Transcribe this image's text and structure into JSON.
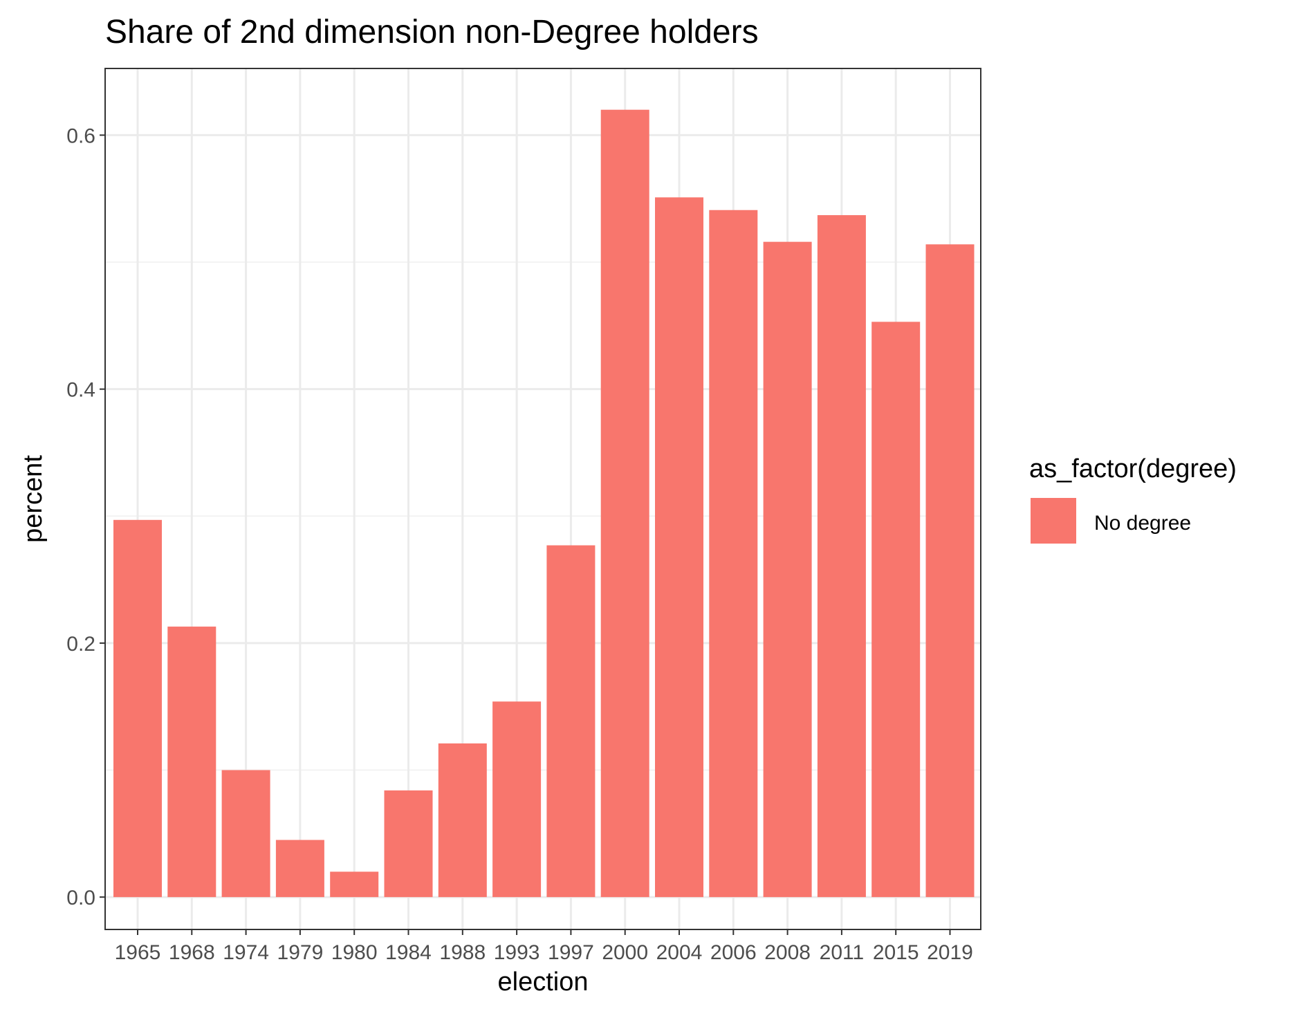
{
  "chart_data": {
    "type": "bar",
    "title": "Share of 2nd dimension non-Degree holders",
    "xlabel": "election",
    "ylabel": "percent",
    "categories": [
      "1965",
      "1968",
      "1974",
      "1979",
      "1980",
      "1984",
      "1988",
      "1993",
      "1997",
      "2000",
      "2004",
      "2006",
      "2008",
      "2011",
      "2015",
      "2019"
    ],
    "series": [
      {
        "name": "No degree",
        "color": "#F8766D",
        "values": [
          0.297,
          0.213,
          0.1,
          0.045,
          0.02,
          0.084,
          0.121,
          0.154,
          0.277,
          0.62,
          0.551,
          0.541,
          0.516,
          0.537,
          0.453,
          0.514
        ]
      }
    ],
    "ylim": [
      -0.0255,
      0.6525
    ],
    "yticks": [
      0.0,
      0.2,
      0.4,
      0.6
    ],
    "ytick_labels": [
      "0.0",
      "0.2",
      "0.4",
      "0.6"
    ],
    "grid": true,
    "legend": {
      "title": "as_factor(degree)",
      "position": "right",
      "entries": [
        "No degree"
      ]
    }
  },
  "colors": {
    "bar_fill": "#F8766D",
    "panel_border": "#333333",
    "grid_major": "#EBEBEB",
    "grid_minor": "#F3F3F3",
    "tick_text": "#4D4D4D"
  }
}
